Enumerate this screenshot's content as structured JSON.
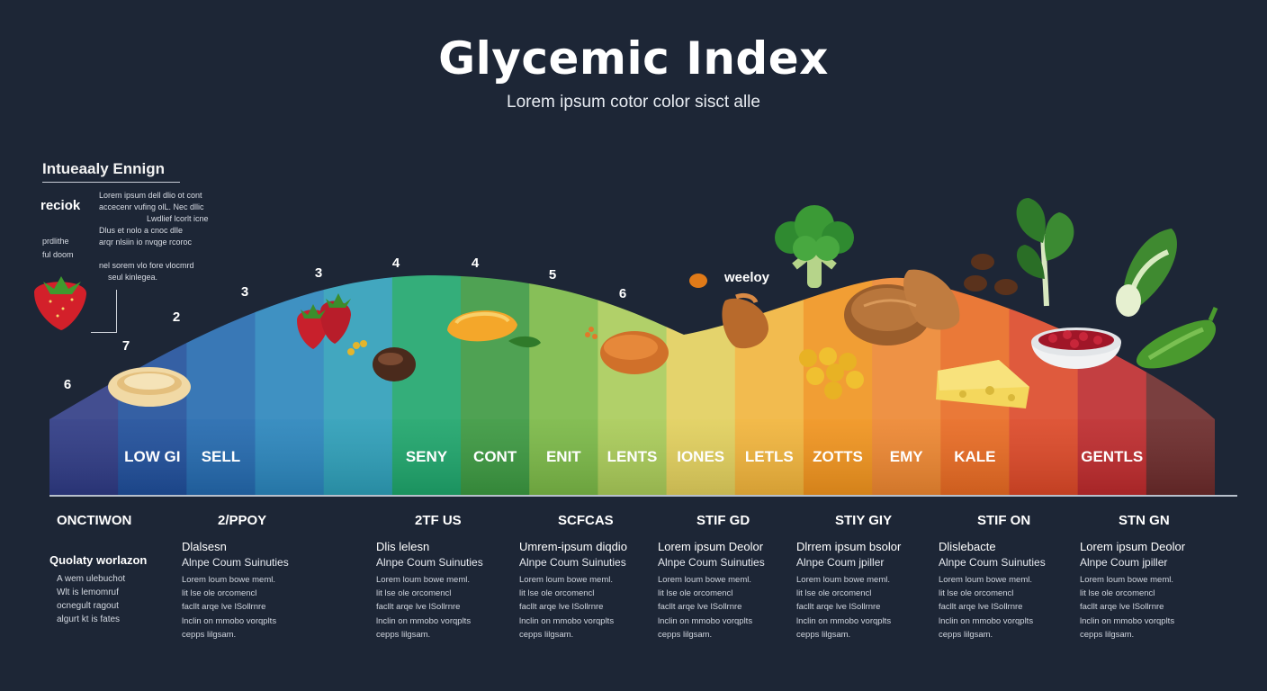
{
  "header": {
    "title": "Glycemic Index",
    "subtitle": "Lorem ipsum cotor color sisct alle"
  },
  "side_panel": {
    "heading": "Intueaaly Ennign",
    "label": "reciok",
    "label2": "prdlithe",
    "label3": "ful doom",
    "lines": [
      "Lorem ipsum dell dlio ot cont",
      "accecenr vufing olL. Nec dllic",
      "Lwdlief lcorlt icne",
      "Dlus et nolo a cnoc dlle",
      "arqr nlsiin io nvqge rcoroc",
      "nel sorem vlo fore vlocmrd",
      "seul kinlegea."
    ]
  },
  "numbers": [
    "6",
    "7",
    "2",
    "3",
    "3",
    "4",
    "4",
    "5",
    "6"
  ],
  "arc_label": "weeloy",
  "bands": [
    {
      "label": "",
      "color": "#2e3a84"
    },
    {
      "label": "LOW GI",
      "color": "#1f4e9a"
    },
    {
      "label": "SELL",
      "color": "#2369ae"
    },
    {
      "label": "",
      "color": "#2a85bc"
    },
    {
      "label": "",
      "color": "#2d9eb8"
    },
    {
      "label": "SENY",
      "color": "#1ea56b"
    },
    {
      "label": "CONT",
      "color": "#3b9840"
    },
    {
      "label": "ENIT",
      "color": "#7ab846"
    },
    {
      "label": "LENTS",
      "color": "#a9cb58"
    },
    {
      "label": "IONES",
      "color": "#e1cf5c"
    },
    {
      "label": "LETLS",
      "color": "#f1b43b"
    },
    {
      "label": "ZOTTS",
      "color": "#f0931d"
    },
    {
      "label": "EMY",
      "color": "#ed8630"
    },
    {
      "label": "KALE",
      "color": "#e86a22"
    },
    {
      "label": "",
      "color": "#dc4827"
    },
    {
      "label": "GENTLS",
      "color": "#bd2a2c"
    },
    {
      "label": "",
      "color": "#6b2a2a"
    }
  ],
  "left_block": {
    "head": "ONCTIWON",
    "title": "Quolaty worlazon",
    "lines": [
      "A wem ulebuchot",
      "Wlt is lemomruf",
      "ocnegult ragout",
      "algurt kt is fates"
    ]
  },
  "columns": [
    {
      "head": "2/PPOY",
      "title": "Dlalsesn",
      "sub": "Alnpe Coum Suinuties",
      "lines": [
        "Lorem loum bowe meml.",
        "lit lse ole orcomencl",
        "facllt arqe lve lSollrnre",
        "lnclin on mmobo vorqplts",
        "cepps lilgsam."
      ]
    },
    {
      "head": "2TF US",
      "title": "Dlis lelesn",
      "sub": "Alnpe Coum Suinuties",
      "lines": [
        "Lorem loum bowe meml.",
        "lit lse ole orcomencl",
        "facllt arqe lve lSollrnre",
        "lnclin on mmobo vorqplts",
        "cepps lilgsam."
      ]
    },
    {
      "head": "SCFCAS",
      "title": "Umrem-ipsum diqdio",
      "sub": "Alnpe Coum Suinuties",
      "lines": [
        "Lorem loum bowe meml.",
        "lit lse ole orcomencl",
        "facllt arqe lve lSollrnre",
        "lnclin on mmobo vorqplts",
        "cepps lilgsam."
      ]
    },
    {
      "head": "STIF GD",
      "title": "Lorem ipsum Deolor",
      "sub": "Alnpe Coum Suinuties",
      "lines": [
        "Lorem loum bowe meml.",
        "lit lse ole orcomencl",
        "facllt arqe lve lSollrnre",
        "lnclin on mmobo vorqplts",
        "cepps lilgsam."
      ]
    },
    {
      "head": "STIY GIY",
      "title": "Dlrrem ipsum bsolor",
      "sub": "Alnpe Coum jpiller",
      "lines": [
        "Lorem loum bowe meml.",
        "lit lse ole orcomencl",
        "facllt arqe lve lSollrnre",
        "lnclin on mmobo vorqplts",
        "cepps lilgsam."
      ]
    },
    {
      "head": "STIF ON",
      "title": "Dlislebacte",
      "sub": "Alnpe Coum Suinuties",
      "lines": [
        "Lorem loum bowe meml.",
        "lit lse ole orcomencl",
        "facllt arqe lve lSollrnre",
        "lnclin on mmobo vorqplts",
        "cepps lilgsam."
      ]
    },
    {
      "head": "STN GN",
      "title": "Lorem ipsum Deolor",
      "sub": "Alnpe Coum jpiller",
      "lines": [
        "Lorem loum bowe meml.",
        "lit lse ole orcomencl",
        "facllt arqe lve lSollrnre",
        "lnclin on mmobo vorqplts",
        "cepps lilgsam."
      ]
    }
  ],
  "food_icons": [
    "strawberry-icon",
    "flatbread-icon",
    "strawberries-icon",
    "chestnut-icon",
    "pasta-shell-icon",
    "lentils-icon",
    "peanut-icon",
    "potato-icon",
    "broccoli-icon",
    "chickpeas-icon",
    "bread-loaf-icon",
    "cheese-icon",
    "coffee-beans-icon",
    "kale-icon",
    "kidney-beans-bowl-icon",
    "bok-choy-icon",
    "zucchini-icon"
  ]
}
